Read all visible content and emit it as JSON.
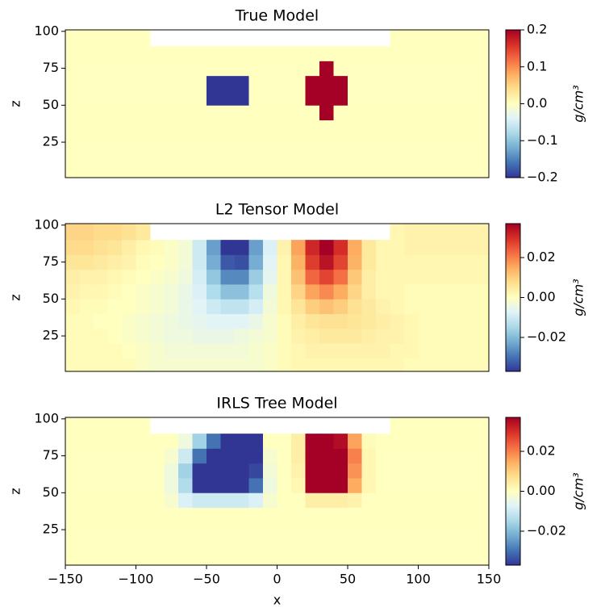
{
  "chart_data": [
    {
      "type": "heatmap",
      "title": "True Model",
      "ylabel": "z",
      "cbar_label": "g/cm³",
      "xlim": [
        -150,
        150
      ],
      "ylim": [
        1,
        101
      ],
      "yticks": [
        25,
        50,
        75,
        100
      ],
      "x_edges": [
        -150,
        -140,
        -130,
        -120,
        -110,
        -100,
        -90,
        -80,
        -70,
        -60,
        -50,
        -40,
        -30,
        -20,
        -10,
        0,
        10,
        20,
        30,
        40,
        50,
        60,
        70,
        80,
        90,
        100,
        110,
        120,
        130,
        140,
        150
      ],
      "z_edges": [
        1,
        10,
        20,
        30,
        40,
        50,
        60,
        70,
        80,
        90,
        101
      ],
      "clim": [
        -0.2,
        0.2
      ],
      "cticks": [
        {
          "value": -0.2,
          "label": "−0.2"
        },
        {
          "value": -0.1,
          "label": "−0.1"
        },
        {
          "value": 0,
          "label": "0.0"
        },
        0.1,
        0.2
      ],
      "colorscale": [
        "#313695",
        "#4575b4",
        "#74add1",
        "#abd9e9",
        "#e0f3f8",
        "#ffffbf",
        "#fee090",
        "#fdae61",
        "#f46d43",
        "#d73027",
        "#a50026"
      ],
      "values": [
        [
          0,
          0,
          0,
          0,
          0,
          0,
          0,
          0,
          0,
          0,
          0,
          0,
          0,
          0,
          0,
          0,
          0,
          0,
          0,
          0,
          0,
          0,
          0,
          0,
          0,
          0,
          0,
          0,
          0,
          0
        ],
        [
          0,
          0,
          0,
          0,
          0,
          0,
          0,
          0,
          0,
          0,
          0,
          0,
          0,
          0,
          0,
          0,
          0,
          0,
          0,
          0,
          0,
          0,
          0,
          0,
          0,
          0,
          0,
          0,
          0,
          0
        ],
        [
          0,
          0,
          0,
          0,
          0,
          0,
          0,
          0,
          0,
          0,
          0,
          0,
          0,
          0,
          0,
          0,
          0,
          0,
          0,
          0,
          0,
          0,
          0,
          0,
          0,
          0,
          0,
          0,
          0,
          0
        ],
        [
          0,
          0,
          0,
          0,
          0,
          0,
          0,
          0,
          0,
          0,
          0,
          0,
          0,
          0,
          0,
          0,
          0,
          0,
          0,
          0,
          0,
          0,
          0,
          0,
          0,
          0,
          0,
          0,
          0,
          0
        ],
        [
          0,
          0,
          0,
          0,
          0,
          0,
          0,
          0,
          0,
          0,
          0,
          0,
          0,
          0,
          0,
          0,
          0,
          0,
          0.2,
          0,
          0,
          0,
          0,
          0,
          0,
          0,
          0,
          0,
          0,
          0
        ],
        [
          0,
          0,
          0,
          0,
          0,
          0,
          0,
          0,
          0,
          0,
          -0.2,
          -0.2,
          -0.2,
          0,
          0,
          0,
          0,
          0.2,
          0.2,
          0.2,
          0,
          0,
          0,
          0,
          0,
          0,
          0,
          0,
          0,
          0
        ],
        [
          0,
          0,
          0,
          0,
          0,
          0,
          0,
          0,
          0,
          0,
          -0.2,
          -0.2,
          -0.2,
          0,
          0,
          0,
          0,
          0.2,
          0.2,
          0.2,
          0,
          0,
          0,
          0,
          0,
          0,
          0,
          0,
          0,
          0
        ],
        [
          0,
          0,
          0,
          0,
          0,
          0,
          0,
          0,
          0,
          0,
          0,
          0,
          0,
          0,
          0,
          0,
          0,
          0,
          0.2,
          0,
          0,
          0,
          0,
          0,
          0,
          0,
          0,
          0,
          0,
          0
        ],
        [
          0,
          0,
          0,
          0,
          0,
          0,
          0,
          0,
          0,
          0,
          0,
          0,
          0,
          0,
          0,
          0,
          0,
          0,
          0,
          0,
          0,
          0,
          0,
          0,
          0,
          0,
          0,
          0,
          0,
          0
        ],
        [
          0,
          0,
          0,
          0,
          0,
          0,
          null,
          null,
          null,
          null,
          null,
          null,
          null,
          null,
          null,
          null,
          null,
          null,
          null,
          null,
          null,
          null,
          null,
          0,
          0,
          0,
          0,
          0,
          0,
          0
        ]
      ]
    },
    {
      "type": "heatmap",
      "title": "L2 Tensor Model",
      "ylabel": "z",
      "cbar_label": "g/cm³",
      "xlim": [
        -150,
        150
      ],
      "ylim": [
        1,
        101
      ],
      "yticks": [
        25,
        50,
        75,
        100
      ],
      "x_edges": [
        -150,
        -140,
        -130,
        -120,
        -110,
        -100,
        -90,
        -80,
        -70,
        -60,
        -50,
        -40,
        -30,
        -20,
        -10,
        0,
        10,
        20,
        30,
        40,
        50,
        60,
        70,
        80,
        90,
        100,
        110,
        120,
        130,
        140,
        150
      ],
      "z_edges": [
        1,
        10,
        20,
        30,
        40,
        50,
        60,
        70,
        80,
        90,
        101
      ],
      "clim": [
        -0.037,
        0.037
      ],
      "cticks": [
        {
          "value": -0.02,
          "label": "−0.02"
        },
        {
          "value": 0,
          "label": "0.00"
        },
        0.02
      ],
      "colorscale": [
        "#313695",
        "#4575b4",
        "#74add1",
        "#abd9e9",
        "#e0f3f8",
        "#ffffbf",
        "#fee090",
        "#fdae61",
        "#f46d43",
        "#d73027",
        "#a50026"
      ],
      "values": [
        [
          0.001,
          0.001,
          0.001,
          0.001,
          0.001,
          -0.001,
          -0.002,
          -0.002,
          -0.002,
          -0.002,
          -0.002,
          -0.002,
          -0.002,
          -0.002,
          -0.001,
          0.001,
          0.002,
          0.002,
          0.002,
          0.002,
          0.002,
          0.002,
          0.002,
          0.002,
          0.001,
          0.001,
          0.001,
          0.001,
          0.001,
          0.001
        ],
        [
          0.001,
          0.001,
          0.001,
          0.001,
          0,
          -0.001,
          -0.002,
          -0.003,
          -0.003,
          -0.003,
          -0.003,
          -0.003,
          -0.003,
          -0.002,
          -0.001,
          0.001,
          0.002,
          0.003,
          0.003,
          0.003,
          0.003,
          0.003,
          0.003,
          0.002,
          0.002,
          0.001,
          0.001,
          0.001,
          0.001,
          0.001
        ],
        [
          0.001,
          0.001,
          0.001,
          0,
          -0.001,
          -0.002,
          -0.003,
          -0.004,
          -0.004,
          -0.005,
          -0.005,
          -0.005,
          -0.004,
          -0.003,
          -0.002,
          0.001,
          0.003,
          0.004,
          0.005,
          0.005,
          0.005,
          0.004,
          0.003,
          0.003,
          0.002,
          0.001,
          0.001,
          0.001,
          0.001,
          0.001
        ],
        [
          0.001,
          0.001,
          0,
          0,
          -0.001,
          -0.002,
          -0.003,
          -0.004,
          -0.005,
          -0.006,
          -0.007,
          -0.007,
          -0.007,
          -0.005,
          -0.002,
          0.001,
          0.004,
          0.006,
          0.007,
          0.007,
          0.006,
          0.005,
          0.004,
          0.003,
          0.002,
          0.001,
          0.001,
          0.001,
          0.001,
          0.001
        ],
        [
          0.002,
          0.001,
          0.001,
          0,
          0,
          -0.001,
          -0.002,
          -0.003,
          -0.005,
          -0.007,
          -0.01,
          -0.012,
          -0.012,
          -0.009,
          -0.003,
          0.002,
          0.006,
          0.01,
          0.012,
          0.01,
          0.007,
          0.005,
          0.003,
          0.002,
          0.001,
          0.001,
          0.001,
          0.001,
          0.001,
          0.001
        ],
        [
          0.003,
          0.002,
          0.002,
          0.001,
          0,
          -0.001,
          -0.002,
          -0.003,
          -0.005,
          -0.008,
          -0.014,
          -0.019,
          -0.019,
          -0.013,
          -0.004,
          0.002,
          0.009,
          0.016,
          0.019,
          0.015,
          0.009,
          0.004,
          0.002,
          0.002,
          0.001,
          0.001,
          0.001,
          0.001,
          0.001,
          0.001
        ],
        [
          0.004,
          0.003,
          0.003,
          0.002,
          0.001,
          0,
          -0.001,
          -0.002,
          -0.004,
          -0.009,
          -0.018,
          -0.027,
          -0.027,
          -0.017,
          -0.006,
          0.002,
          0.012,
          0.023,
          0.027,
          0.022,
          0.011,
          0.004,
          0.002,
          0.002,
          0.002,
          0.002,
          0.002,
          0.002,
          0.002,
          0.002
        ],
        [
          0.006,
          0.006,
          0.005,
          0.004,
          0.003,
          0.001,
          0,
          -0.001,
          -0.003,
          -0.01,
          -0.022,
          -0.033,
          -0.034,
          -0.022,
          -0.007,
          0.002,
          0.014,
          0.028,
          0.034,
          0.027,
          0.014,
          0.005,
          0.002,
          0.002,
          0.002,
          0.002,
          0.002,
          0.002,
          0.002,
          0.002
        ],
        [
          0.008,
          0.008,
          0.007,
          0.006,
          0.004,
          0.002,
          0.001,
          -0.001,
          -0.003,
          -0.01,
          -0.024,
          -0.037,
          -0.037,
          -0.024,
          -0.008,
          0.003,
          0.016,
          0.031,
          0.037,
          0.03,
          0.015,
          0.005,
          0.002,
          0.002,
          0.003,
          0.003,
          0.003,
          0.003,
          0.003,
          0.003
        ],
        [
          0.009,
          0.009,
          0.008,
          0.008,
          0.007,
          0.005,
          null,
          null,
          null,
          null,
          null,
          null,
          null,
          null,
          null,
          null,
          null,
          null,
          null,
          null,
          null,
          null,
          null,
          0.002,
          0.003,
          0.003,
          0.003,
          0.003,
          0.003,
          0.003
        ]
      ]
    },
    {
      "type": "heatmap",
      "title": "IRLS Tree Model",
      "ylabel": "z",
      "xlabel": "x",
      "cbar_label": "g/cm³",
      "xlim": [
        -150,
        150
      ],
      "ylim": [
        1,
        101
      ],
      "yticks": [
        25,
        50,
        75,
        100
      ],
      "xticks": [
        {
          "value": -150,
          "label": "−150"
        },
        {
          "value": -100,
          "label": "−100"
        },
        {
          "value": -50,
          "label": "−50"
        },
        0,
        50,
        100,
        150
      ],
      "x_edges": [
        -150,
        -140,
        -130,
        -120,
        -110,
        -100,
        -90,
        -80,
        -70,
        -60,
        -50,
        -40,
        -30,
        -20,
        -10,
        0,
        10,
        20,
        30,
        40,
        50,
        60,
        70,
        80,
        90,
        100,
        110,
        120,
        130,
        140,
        150
      ],
      "z_edges": [
        1,
        10,
        20,
        30,
        40,
        50,
        60,
        70,
        80,
        90,
        101
      ],
      "clim": [
        -0.037,
        0.037
      ],
      "cticks": [
        {
          "value": -0.02,
          "label": "−0.02"
        },
        {
          "value": 0,
          "label": "0.00"
        },
        0.02
      ],
      "colorscale": [
        "#313695",
        "#4575b4",
        "#74add1",
        "#abd9e9",
        "#e0f3f8",
        "#ffffbf",
        "#fee090",
        "#fdae61",
        "#f46d43",
        "#d73027",
        "#a50026"
      ],
      "values": [
        [
          0,
          0,
          0,
          0,
          0,
          0,
          0,
          0,
          0,
          0,
          0,
          0,
          0,
          0,
          0,
          0,
          0,
          0,
          0,
          0,
          0,
          0,
          0,
          0,
          0,
          0,
          0,
          0,
          0,
          0
        ],
        [
          0,
          0,
          0,
          0,
          0,
          0,
          0,
          0,
          0,
          0,
          0,
          0,
          0,
          0,
          0,
          0,
          0,
          0,
          0,
          0,
          0,
          0,
          0,
          0,
          0,
          0,
          0,
          0,
          0,
          0
        ],
        [
          0,
          0,
          0,
          0,
          0,
          0,
          0,
          0,
          0,
          0,
          0,
          0,
          0,
          0,
          0,
          0,
          0,
          0,
          0,
          0,
          0,
          0,
          0,
          0,
          0,
          0,
          0,
          0,
          0,
          0
        ],
        [
          0,
          0,
          0,
          0,
          0,
          0,
          0,
          0,
          0,
          0,
          0,
          0,
          0,
          0,
          0,
          0,
          0,
          0,
          0,
          0,
          0,
          0,
          0,
          0,
          0,
          0,
          0,
          0,
          0,
          0
        ],
        [
          0,
          0,
          0,
          0,
          0,
          0,
          0,
          -0.002,
          -0.008,
          -0.01,
          -0.01,
          -0.01,
          -0.01,
          -0.008,
          -0.002,
          0,
          0,
          0.004,
          0.004,
          0.004,
          0.003,
          0,
          0,
          0,
          0,
          0,
          0,
          0,
          0,
          0
        ],
        [
          0,
          0,
          0,
          0,
          0,
          0,
          0,
          -0.004,
          -0.014,
          -0.037,
          -0.037,
          -0.037,
          -0.037,
          -0.03,
          -0.004,
          0,
          0.002,
          0.037,
          0.037,
          0.037,
          0.015,
          0.002,
          0,
          0,
          0,
          0,
          0,
          0,
          0,
          0
        ],
        [
          0,
          0,
          0,
          0,
          0,
          0,
          0,
          -0.004,
          -0.016,
          -0.037,
          -0.037,
          -0.037,
          -0.037,
          -0.035,
          -0.003,
          0,
          0.003,
          0.037,
          0.037,
          0.037,
          0.018,
          0.002,
          0,
          0,
          0,
          0,
          0,
          0,
          0,
          0
        ],
        [
          0,
          0,
          0,
          0,
          0,
          0,
          0,
          -0.002,
          -0.01,
          -0.03,
          -0.037,
          -0.037,
          -0.037,
          -0.037,
          -0.002,
          0,
          0.004,
          0.037,
          0.037,
          0.037,
          0.02,
          0.002,
          0,
          0,
          0,
          0,
          0,
          0,
          0,
          0
        ],
        [
          0,
          0,
          0,
          0,
          0,
          0,
          0,
          0,
          -0.004,
          -0.016,
          -0.03,
          -0.037,
          -0.037,
          -0.037,
          0,
          0,
          0.004,
          0.037,
          0.037,
          0.035,
          0.016,
          0.001,
          0,
          0,
          0,
          0,
          0,
          0,
          0,
          0
        ],
        [
          0,
          0,
          0,
          0,
          0,
          0,
          null,
          null,
          null,
          null,
          null,
          null,
          null,
          null,
          null,
          null,
          null,
          null,
          null,
          null,
          null,
          null,
          null,
          0,
          0,
          0,
          0,
          0,
          0,
          0
        ]
      ]
    }
  ]
}
